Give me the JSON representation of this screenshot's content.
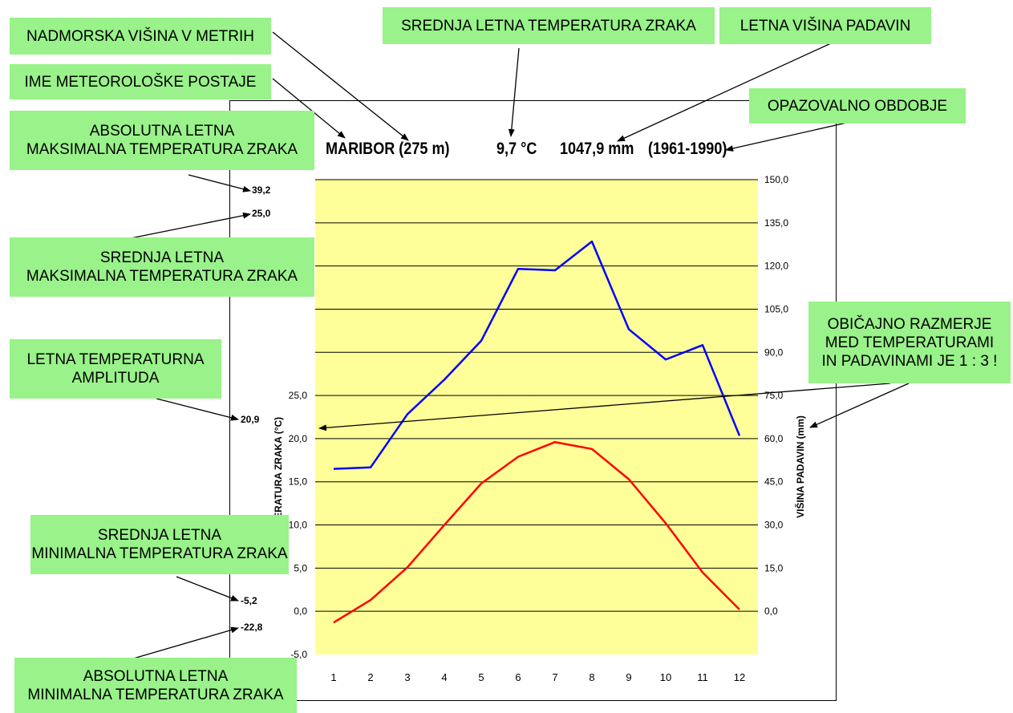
{
  "header": {
    "station": "MARIBOR (275 m)",
    "mean_temp": "9,7 °C",
    "precip": "1047,9 mm",
    "period": "(1961-1990)"
  },
  "side_values": {
    "abs_max": "39,2",
    "mean_max": "25,0",
    "amplitude": "20,9",
    "mean_min": "-5,2",
    "abs_min": "-22,8"
  },
  "labels": {
    "altitude": "NADMORSKA VIŠINA V METRIH",
    "station_name": "IME METEOROLOŠKE POSTAJE",
    "abs_max_line1": "ABSOLUTNA LETNA",
    "abs_max_line2": "MAKSIMALNA TEMPERATURA ZRAKA",
    "mean_max_line1": "SREDNJA LETNA",
    "mean_max_line2": "MAKSIMALNA TEMPERATURA ZRAKA",
    "amplitude_line1": "LETNA TEMPERATURNA",
    "amplitude_line2": "AMPLITUDA",
    "mean_min_line1": "SREDNJA LETNA",
    "mean_min_line2": "MINIMALNA TEMPERATURA ZRAKA",
    "abs_min_line1": "ABSOLUTNA LETNA",
    "abs_min_line2": "MINIMALNA TEMPERATURA ZRAKA",
    "mean_temp": "SREDNJA LETNA TEMPERATURA ZRAKA",
    "precip": "LETNA VIŠINA PADAVIN",
    "period": "OPAZOVALNO OBDOBJE",
    "ratio_line1": "OBIČAJNO RAZMERJE",
    "ratio_line2": "MED TEMPERATURAMI",
    "ratio_line3": "IN PADAVINAMI JE 1 : 3 !"
  },
  "chart_data": {
    "type": "line",
    "categories": [
      1,
      2,
      3,
      4,
      5,
      6,
      7,
      8,
      9,
      10,
      11,
      12
    ],
    "series": [
      {
        "name": "Višina padavin (mm)",
        "axis": "right",
        "color": "#0000ff",
        "values": [
          49.5,
          50.0,
          68.5,
          80.5,
          94.0,
          119.0,
          118.5,
          128.5,
          98.0,
          87.5,
          92.5,
          61.0
        ]
      },
      {
        "name": "Temperatura zraka (°C)",
        "axis": "left",
        "color": "#ff0000",
        "values": [
          -1.3,
          1.3,
          5.1,
          10.0,
          14.8,
          17.9,
          19.6,
          18.8,
          15.3,
          10.2,
          4.5,
          0.2
        ]
      }
    ],
    "left_axis": {
      "label": "TEMPERATURA ZRAKA (°C)",
      "ticks": [
        "25,0",
        "20,0",
        "15,0",
        "10,0",
        "5,0",
        "0,0",
        "-5,0"
      ],
      "range": [
        -5,
        25
      ]
    },
    "right_axis": {
      "label": "VIŠINA PADAVIN (mm)",
      "ticks": [
        "150,0",
        "135,0",
        "120,0",
        "105,0",
        "90,0",
        "75,0",
        "60,0",
        "45,0",
        "30,0",
        "15,0",
        "0,0"
      ],
      "range": [
        -15,
        150
      ]
    },
    "plot_background": "#ffff99",
    "grid": true
  }
}
